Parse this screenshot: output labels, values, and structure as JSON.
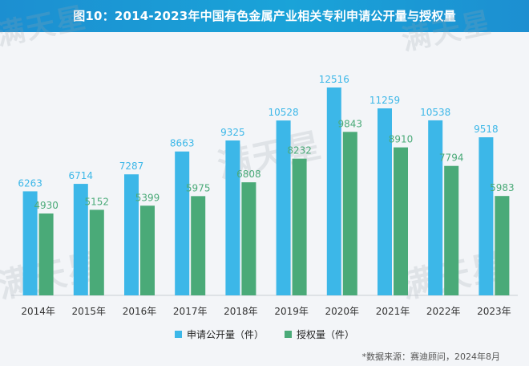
{
  "title": "图10：2014-2023年中国有色金属产业相关专利申请公开量与授权量",
  "watermark": "满天星",
  "source": "*数据来源：赛迪顾问，2024年8月",
  "colors": {
    "series_published": "#3cb7e8",
    "series_granted": "#4aaa78",
    "title_bar": "#1c8fd1"
  },
  "chart_data": {
    "type": "bar",
    "categories": [
      "2014年",
      "2015年",
      "2016年",
      "2017年",
      "2018年",
      "2019年",
      "2020年",
      "2021年",
      "2022年",
      "2023年"
    ],
    "series": [
      {
        "name": "申请公开量（件）",
        "values": [
          6263,
          6714,
          7287,
          8663,
          9325,
          10528,
          12516,
          11259,
          10538,
          9518
        ]
      },
      {
        "name": "授权量（件）",
        "values": [
          4930,
          5152,
          5399,
          5975,
          6808,
          8232,
          9843,
          8910,
          7794,
          5983
        ]
      }
    ],
    "ylim": [
      0,
      13500
    ],
    "grid": false,
    "legend_position": "bottom"
  }
}
